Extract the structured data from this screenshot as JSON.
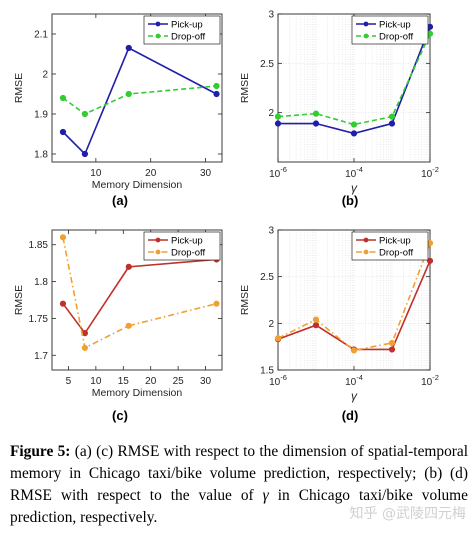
{
  "chart_data": [
    {
      "type": "line",
      "panel_label": "(a)",
      "xlabel": "Memory Dimension",
      "ylabel": "RMSE",
      "x": [
        4,
        8,
        16,
        32
      ],
      "xlim": [
        2,
        33
      ],
      "ylim": [
        1.78,
        2.15
      ],
      "xticks": [
        10,
        20,
        30
      ],
      "yticks": [
        1.8,
        1.9,
        2,
        2.1
      ],
      "xscale": "linear",
      "grid": false,
      "legend": "top-right",
      "series": [
        {
          "name": "Pick-up",
          "values": [
            1.855,
            1.8,
            2.065,
            1.95
          ],
          "color": "#1f1fa8",
          "style": "solid",
          "marker": "circle"
        },
        {
          "name": "Drop-off",
          "values": [
            1.94,
            1.9,
            1.95,
            1.97
          ],
          "color": "#33cc33",
          "style": "dashed",
          "marker": "circle"
        }
      ]
    },
    {
      "type": "line",
      "panel_label": "(b)",
      "xlabel": "γ",
      "ylabel": "RMSE",
      "x": [
        1e-06,
        1e-05,
        0.0001,
        0.001,
        0.01
      ],
      "xlim": [
        1e-06,
        0.01
      ],
      "ylim": [
        1.5,
        3
      ],
      "xticks": [
        1e-06,
        0.0001,
        0.01
      ],
      "xticklabels": [
        {
          "base": "10",
          "exp": "-6"
        },
        {
          "base": "10",
          "exp": "-4"
        },
        {
          "base": "10",
          "exp": "-2"
        }
      ],
      "yticks": [
        2,
        2.5,
        3
      ],
      "xscale": "log",
      "grid": true,
      "legend": "top-right",
      "series": [
        {
          "name": "Pick-up",
          "values": [
            1.89,
            1.89,
            1.79,
            1.89,
            2.87
          ],
          "color": "#1f1fa8",
          "style": "solid",
          "marker": "circle"
        },
        {
          "name": "Drop-off",
          "values": [
            1.96,
            1.99,
            1.88,
            1.96,
            2.8
          ],
          "color": "#33cc33",
          "style": "dashed",
          "marker": "circle"
        }
      ]
    },
    {
      "type": "line",
      "panel_label": "(c)",
      "xlabel": "Memory Dimension",
      "ylabel": "RMSE",
      "x": [
        4,
        8,
        16,
        32
      ],
      "xlim": [
        2,
        33
      ],
      "ylim": [
        1.68,
        1.87
      ],
      "xticks": [
        5,
        10,
        15,
        20,
        25,
        30
      ],
      "yticks": [
        1.7,
        1.75,
        1.8,
        1.85
      ],
      "xscale": "linear",
      "grid": false,
      "legend": "top-right",
      "series": [
        {
          "name": "Pick-up",
          "values": [
            1.77,
            1.73,
            1.82,
            1.83
          ],
          "color": "#c0302a",
          "style": "solid",
          "marker": "circle"
        },
        {
          "name": "Drop-off",
          "values": [
            1.86,
            1.71,
            1.74,
            1.77
          ],
          "color": "#f0a030",
          "style": "dashdot",
          "marker": "circle"
        }
      ]
    },
    {
      "type": "line",
      "panel_label": "(d)",
      "xlabel": "γ",
      "ylabel": "RMSE",
      "x": [
        1e-06,
        1e-05,
        0.0001,
        0.001,
        0.01
      ],
      "xlim": [
        1e-06,
        0.01
      ],
      "ylim": [
        1.5,
        3
      ],
      "xticks": [
        1e-06,
        0.0001,
        0.01
      ],
      "xticklabels": [
        {
          "base": "10",
          "exp": "-6"
        },
        {
          "base": "10",
          "exp": "-4"
        },
        {
          "base": "10",
          "exp": "-2"
        }
      ],
      "yticks": [
        1.5,
        2,
        2.5,
        3
      ],
      "xscale": "log",
      "grid": true,
      "legend": "top-right",
      "series": [
        {
          "name": "Pick-up",
          "values": [
            1.83,
            1.98,
            1.72,
            1.72,
            2.67
          ],
          "color": "#c0302a",
          "style": "solid",
          "marker": "circle"
        },
        {
          "name": "Drop-off",
          "values": [
            1.84,
            2.04,
            1.71,
            1.79,
            2.86
          ],
          "color": "#f0a030",
          "style": "dashdot",
          "marker": "circle"
        }
      ]
    }
  ],
  "caption": {
    "label": "Figure 5:",
    "before_gamma": "(a) (c) RMSE with respect to the dimension of spatial-temporal memory in Chicago taxi/bike volume prediction, respectively; (b) (d) RMSE with respect to the value of",
    "gamma": "γ",
    "after_gamma": "in Chicago taxi/bike volume prediction, respectively."
  },
  "watermark": "知乎 @武陵四元梅"
}
